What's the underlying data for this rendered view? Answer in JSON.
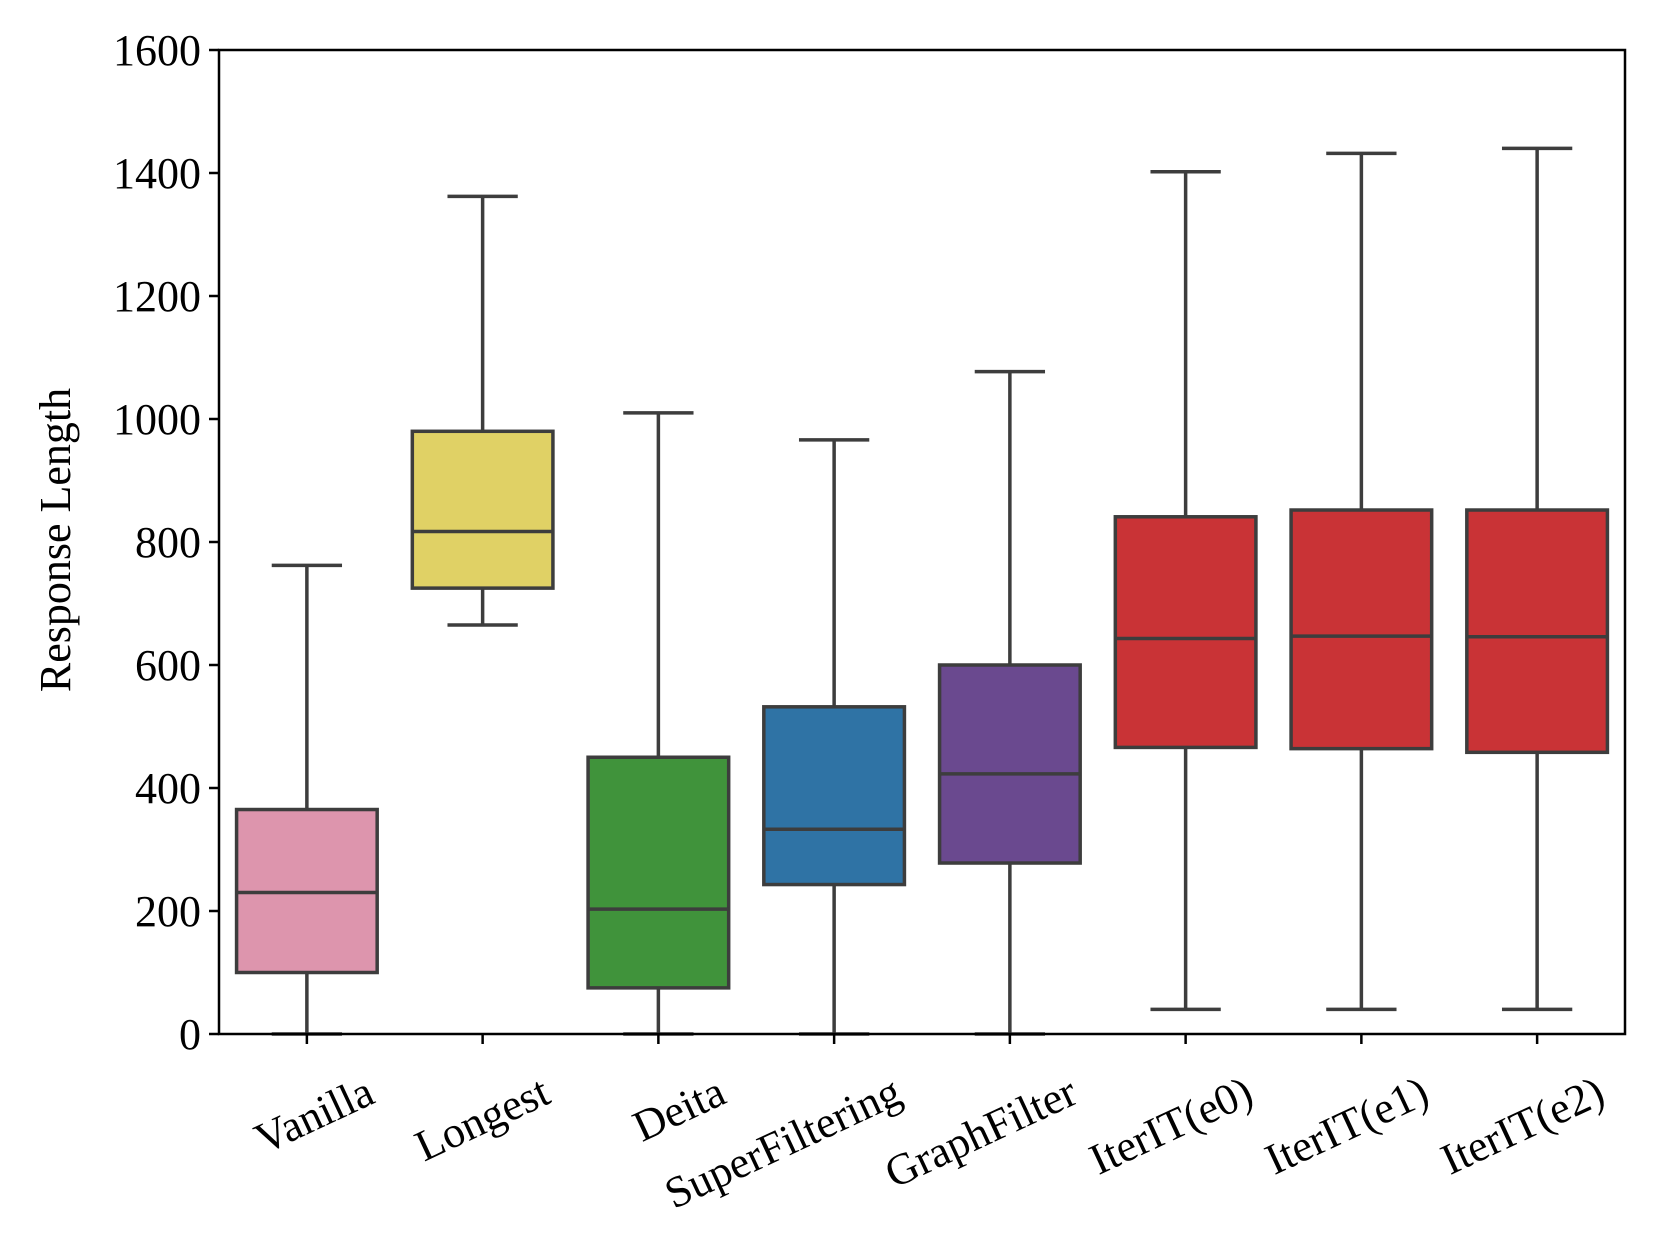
{
  "chart_data": {
    "type": "box",
    "title": "",
    "xlabel": "",
    "ylabel": "Response Length",
    "ylim": [
      0,
      1600
    ],
    "yticks": [
      0,
      200,
      400,
      600,
      800,
      1000,
      1200,
      1400,
      1600
    ],
    "grid": false,
    "legend": "none",
    "series": [
      {
        "name": "Vanilla",
        "whisker_low": 0,
        "q1": 100,
        "median": 230,
        "q3": 365,
        "whisker_high": 762,
        "color": "#dd95ad"
      },
      {
        "name": "Longest",
        "whisker_low": 665,
        "q1": 725,
        "median": 817,
        "q3": 980,
        "whisker_high": 1362,
        "color": "#e0d165"
      },
      {
        "name": "Deita",
        "whisker_low": 0,
        "q1": 75,
        "median": 203,
        "q3": 450,
        "whisker_high": 1010,
        "color": "#40933b"
      },
      {
        "name": "SuperFiltering",
        "whisker_low": 0,
        "q1": 243,
        "median": 333,
        "q3": 532,
        "whisker_high": 966,
        "color": "#2f73a5"
      },
      {
        "name": "GraphFilter",
        "whisker_low": 0,
        "q1": 278,
        "median": 423,
        "q3": 600,
        "whisker_high": 1077,
        "color": "#6a498f"
      },
      {
        "name": "IterIT(e0)",
        "whisker_low": 40,
        "q1": 466,
        "median": 643,
        "q3": 841,
        "whisker_high": 1402,
        "color": "#c93336"
      },
      {
        "name": "IterIT(e1)",
        "whisker_low": 40,
        "q1": 464,
        "median": 647,
        "q3": 852,
        "whisker_high": 1432,
        "color": "#c93336"
      },
      {
        "name": "IterIT(e2)",
        "whisker_low": 40,
        "q1": 458,
        "median": 646,
        "q3": 852,
        "whisker_high": 1440,
        "color": "#c93336"
      }
    ]
  }
}
